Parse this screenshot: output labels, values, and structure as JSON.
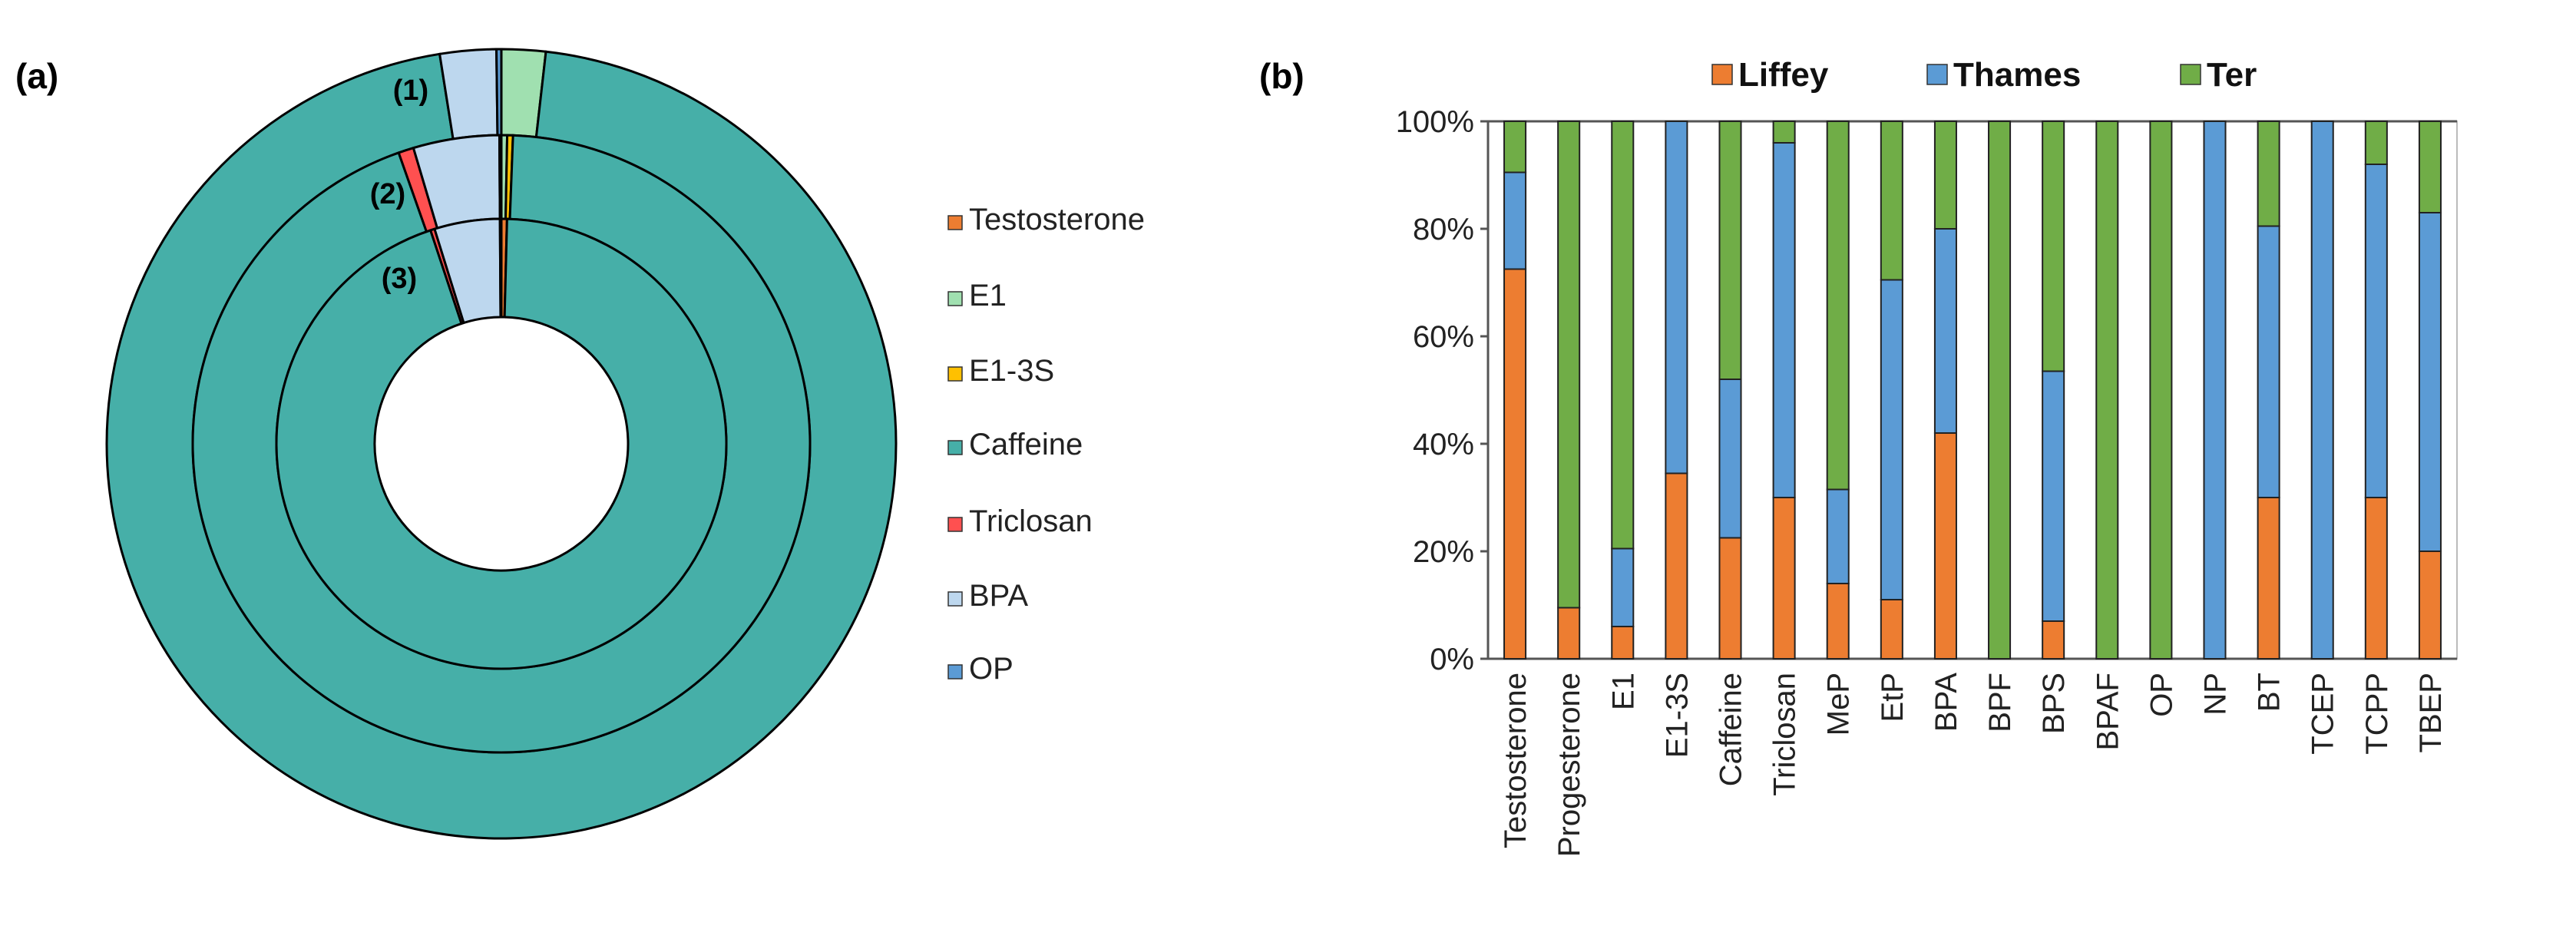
{
  "chart_data": [
    {
      "panel_label": "(a)",
      "type": "pie",
      "subtype": "nested-donut",
      "ring_labels": [
        "(1)",
        "(2)",
        "(3)"
      ],
      "legend": [
        "Testosterone",
        "E1",
        "E1-3S",
        "Caffeine",
        "Triclosan",
        "BPA",
        "OP"
      ],
      "colors": [
        "#ED7D31",
        "#A0E0B0",
        "#FFC000",
        "#46AFA8",
        "#FF5050",
        "#BDD7EE",
        "#5B9BD5"
      ],
      "rings": [
        {
          "label": "(1)",
          "values": [
            0.0,
            1.8,
            0.0,
            95.7,
            0.0,
            2.3,
            0.2
          ]
        },
        {
          "label": "(2)",
          "values": [
            0.0,
            0.3,
            0.3,
            94.0,
            0.8,
            4.5,
            0.1
          ]
        },
        {
          "label": "(3)",
          "values": [
            0.4,
            0.0,
            0.0,
            94.5,
            0.3,
            4.7,
            0.1
          ]
        }
      ]
    },
    {
      "panel_label": "(b)",
      "type": "bar",
      "stacked": "percent",
      "categories": [
        "Testosterone",
        "Progesterone",
        "E1",
        "E1-3S",
        "Caffeine",
        "Triclosan",
        "MeP",
        "EtP",
        "BPA",
        "BPF",
        "BPS",
        "BPAF",
        "OP",
        "NP",
        "BT",
        "TCEP",
        "TCPP",
        "TBEP"
      ],
      "series": [
        {
          "name": "Liffey",
          "color": "#ED7D31",
          "values": [
            72.5,
            9.5,
            6,
            34.5,
            22.5,
            30,
            14,
            11,
            42,
            0,
            7,
            0,
            0,
            0,
            30,
            0,
            30,
            20
          ]
        },
        {
          "name": "Thames",
          "color": "#5B9BD5",
          "values": [
            18,
            0,
            14.5,
            65.5,
            29.5,
            66,
            17.5,
            59.5,
            38,
            0,
            46.5,
            0,
            0,
            100,
            50.5,
            100,
            62,
            63
          ]
        },
        {
          "name": "Ter",
          "color": "#70AD47",
          "values": [
            9.5,
            90.5,
            79.5,
            0,
            48,
            4,
            68.5,
            29.5,
            20,
            100,
            46.5,
            100,
            100,
            0,
            19.5,
            0,
            8,
            17
          ]
        }
      ],
      "yticks": [
        "0%",
        "20%",
        "40%",
        "60%",
        "80%",
        "100%"
      ],
      "ylim": [
        0,
        100
      ],
      "legend_position": "top",
      "grid": false
    }
  ]
}
